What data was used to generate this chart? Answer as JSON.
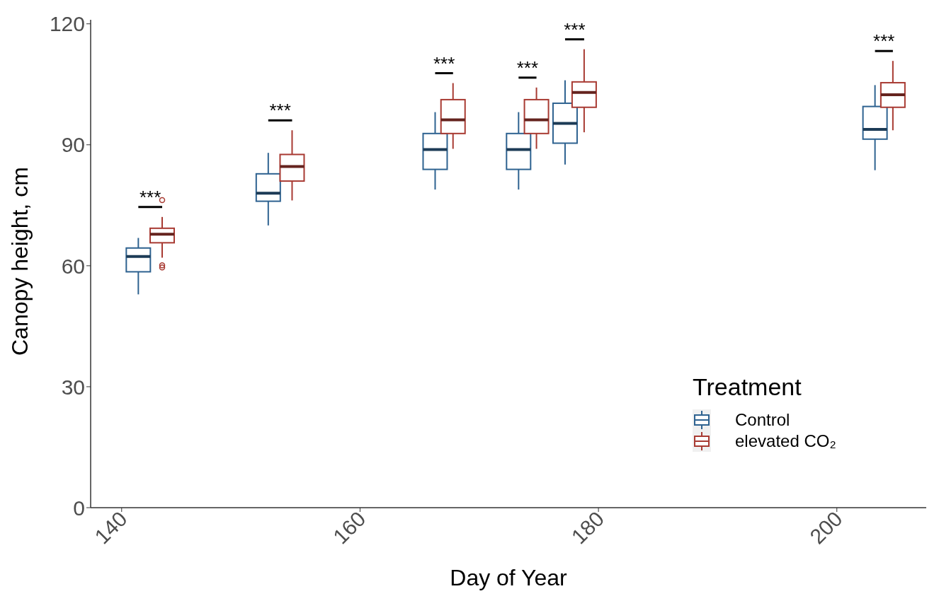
{
  "chart_data": {
    "type": "box",
    "xlabel": "Day of Year",
    "ylabel": "Canopy height, cm",
    "legend_title": "Treatment",
    "legend": "bottom right",
    "grid": false,
    "xlim": [
      137.4,
      207.5
    ],
    "xticks": [
      140,
      160,
      180,
      200
    ],
    "ylim": [
      0,
      121
    ],
    "yticks": [
      0,
      30,
      60,
      90,
      120
    ],
    "series": [
      {
        "name": "Control",
        "color": "#2e6290",
        "x": [
          141.4,
          152.3,
          166.3,
          173.3,
          177.2,
          203.2
        ],
        "boxes": [
          {
            "low": 52.9,
            "q1": 58.5,
            "median": 62.3,
            "q3": 64.4,
            "high": 66.9
          },
          {
            "low": 70.0,
            "q1": 76.0,
            "median": 78.0,
            "q3": 82.8,
            "high": 88.0
          },
          {
            "low": 78.9,
            "q1": 83.9,
            "median": 88.8,
            "q3": 92.8,
            "high": 98.1
          },
          {
            "low": 78.9,
            "q1": 83.9,
            "median": 88.8,
            "q3": 92.8,
            "high": 98.1
          },
          {
            "low": 85.1,
            "q1": 90.4,
            "median": 95.3,
            "q3": 100.3,
            "high": 106.0
          },
          {
            "low": 83.7,
            "q1": 91.4,
            "median": 93.8,
            "q3": 99.5,
            "high": 104.8
          }
        ]
      },
      {
        "name": "elevated CO₂",
        "color": "#a83a32",
        "x": [
          143.4,
          154.3,
          167.8,
          174.8,
          178.8,
          204.7
        ],
        "boxes": [
          {
            "low": 62.0,
            "q1": 65.7,
            "median": 67.8,
            "q3": 69.3,
            "high": 72.1,
            "outliers": [
              76.3,
              60.1,
              59.6
            ]
          },
          {
            "low": 76.2,
            "q1": 81.0,
            "median": 84.6,
            "q3": 87.6,
            "high": 93.6
          },
          {
            "low": 89.0,
            "q1": 92.8,
            "median": 96.2,
            "q3": 101.2,
            "high": 105.3
          },
          {
            "low": 89.0,
            "q1": 92.8,
            "median": 96.2,
            "q3": 101.2,
            "high": 104.2
          },
          {
            "low": 93.1,
            "q1": 99.3,
            "median": 103.0,
            "q3": 105.6,
            "high": 113.7
          },
          {
            "low": 93.6,
            "q1": 99.3,
            "median": 102.4,
            "q3": 105.4,
            "high": 110.8
          }
        ]
      }
    ],
    "annotations": [
      "***",
      "***",
      "***",
      "***",
      "***",
      "***"
    ]
  }
}
